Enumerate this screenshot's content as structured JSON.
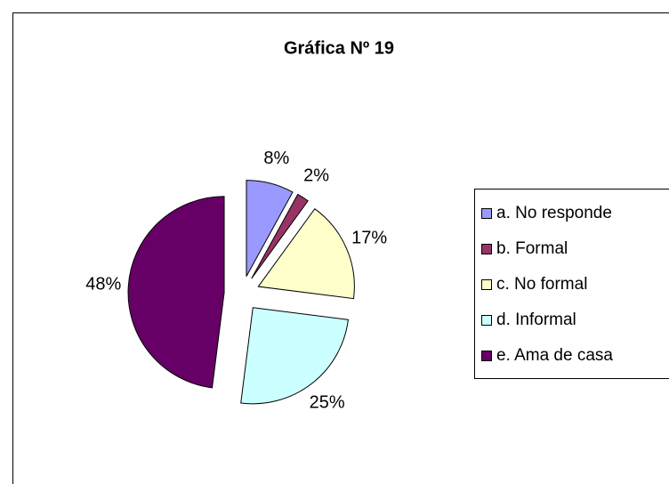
{
  "chart_data": {
    "type": "pie",
    "title": "Gráfica Nº 19",
    "categories": [
      "a. No responde",
      "b. Formal",
      "c. No formal",
      "d. Informal",
      "e. Ama de casa"
    ],
    "values": [
      8,
      2,
      17,
      25,
      48
    ],
    "value_labels": [
      "8%",
      "2%",
      "17%",
      "25%",
      "48%"
    ],
    "colors": [
      "#9999ff",
      "#993366",
      "#ffffcc",
      "#ccffff",
      "#660066"
    ],
    "legend": "right"
  }
}
